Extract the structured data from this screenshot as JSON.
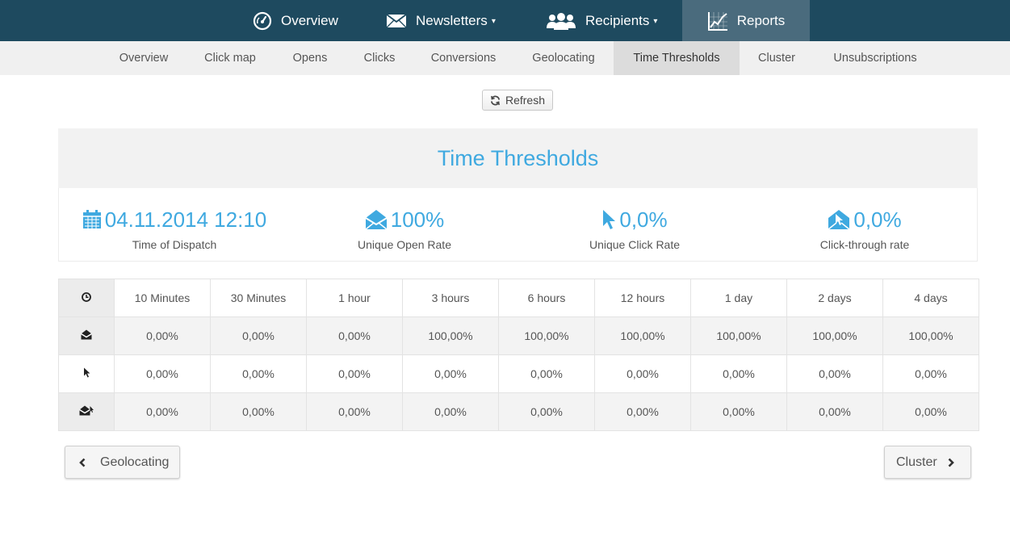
{
  "top_nav": {
    "items": [
      {
        "label": "Overview",
        "icon": "dashboard-icon",
        "caret": ""
      },
      {
        "label": "Newsletters",
        "icon": "envelope-icon",
        "caret": "▾"
      },
      {
        "label": "Recipients",
        "icon": "users-icon",
        "caret": "▾"
      },
      {
        "label": "Reports",
        "icon": "chart-icon",
        "caret": ""
      }
    ],
    "active": "Reports"
  },
  "sub_nav": {
    "items": [
      "Overview",
      "Click map",
      "Opens",
      "Clicks",
      "Conversions",
      "Geolocating",
      "Time Thresholds",
      "Cluster",
      "Unsubscriptions"
    ],
    "active": "Time Thresholds"
  },
  "refresh_label": "Refresh",
  "panel": {
    "title": "Time Thresholds",
    "stats": [
      {
        "value": "04.11.2014 12:10",
        "label": "Time of Dispatch",
        "icon": "calendar-icon"
      },
      {
        "value": "100%",
        "label": "Unique Open Rate",
        "icon": "open-envelope-icon"
      },
      {
        "value": "0,0%",
        "label": "Unique Click Rate",
        "icon": "cursor-icon"
      },
      {
        "value": "0,0%",
        "label": "Click-through rate",
        "icon": "envelope-click-icon"
      }
    ]
  },
  "table": {
    "headers": [
      "10 Minutes",
      "30 Minutes",
      "1 hour",
      "3 hours",
      "6 hours",
      "12 hours",
      "1 day",
      "2 days",
      "4 days"
    ],
    "rows": [
      {
        "icon": "open-envelope-icon",
        "values": [
          "0,00%",
          "0,00%",
          "0,00%",
          "100,00%",
          "100,00%",
          "100,00%",
          "100,00%",
          "100,00%",
          "100,00%"
        ]
      },
      {
        "icon": "cursor-icon",
        "values": [
          "0,00%",
          "0,00%",
          "0,00%",
          "0,00%",
          "0,00%",
          "0,00%",
          "0,00%",
          "0,00%",
          "0,00%"
        ]
      },
      {
        "icon": "envelope-click-icon",
        "values": [
          "0,00%",
          "0,00%",
          "0,00%",
          "0,00%",
          "0,00%",
          "0,00%",
          "0,00%",
          "0,00%",
          "0,00%"
        ]
      }
    ]
  },
  "prev_button": "Geolocating",
  "next_button": "Cluster",
  "colors": {
    "nav_bg": "#1e4a5f",
    "nav_active": "#4a6b7d",
    "accent": "#3fa9e0"
  }
}
